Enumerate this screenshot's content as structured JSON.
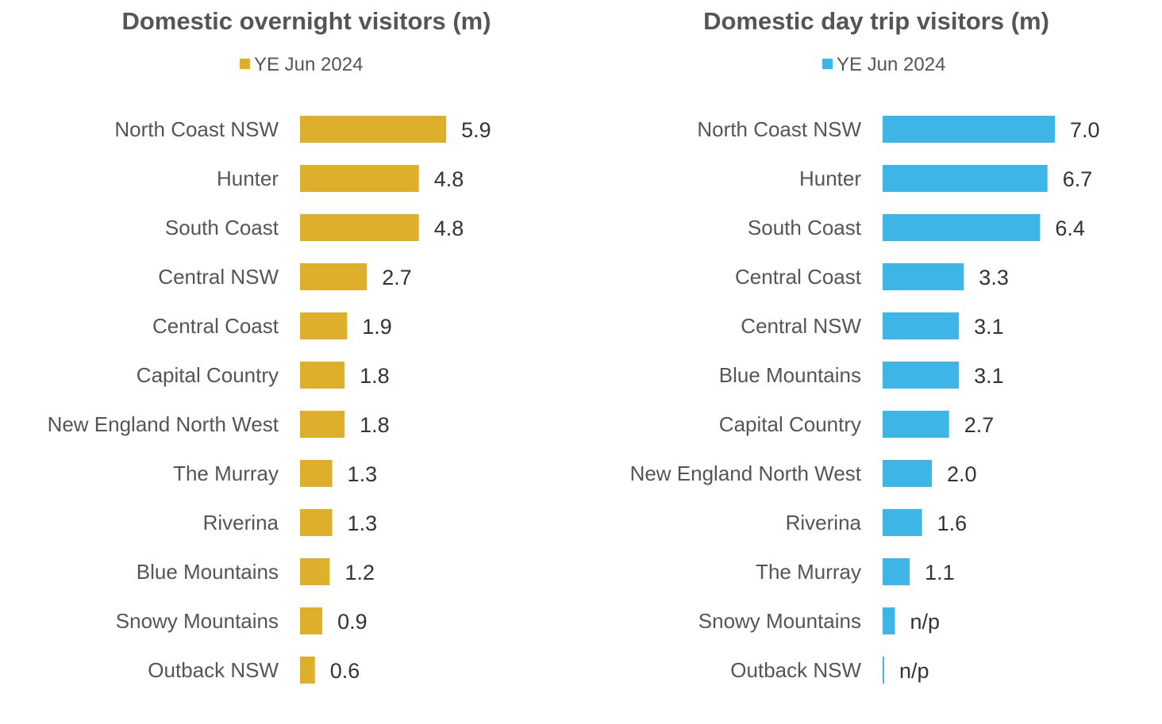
{
  "chart_data": [
    {
      "type": "bar",
      "orientation": "horizontal",
      "title": "Domestic overnight visitors (m)",
      "legend": {
        "placement": "top-center",
        "entries": [
          "YE Jun 2024"
        ]
      },
      "grid": false,
      "color": "#DDAF2A",
      "categories": [
        "North Coast NSW",
        "Hunter",
        "South Coast",
        "Central NSW",
        "Central Coast",
        "Capital Country",
        "New England North West",
        "The Murray",
        "Riverina",
        "Blue Mountains",
        "Snowy Mountains",
        "Outback NSW"
      ],
      "series": [
        {
          "name": "YE Jun 2024",
          "values": [
            5.9,
            4.8,
            4.8,
            2.7,
            1.9,
            1.8,
            1.8,
            1.3,
            1.3,
            1.2,
            0.9,
            0.6
          ]
        }
      ],
      "labels": [
        "5.9",
        "4.8",
        "4.8",
        "2.7",
        "1.9",
        "1.8",
        "1.8",
        "1.3",
        "1.3",
        "1.2",
        "0.9",
        "0.6"
      ]
    },
    {
      "type": "bar",
      "orientation": "horizontal",
      "title": "Domestic day trip visitors (m)",
      "legend": {
        "placement": "top-center",
        "entries": [
          "YE Jun 2024"
        ]
      },
      "grid": false,
      "color": "#3DB5E6",
      "categories": [
        "North Coast NSW",
        "Hunter",
        "South Coast",
        "Central Coast",
        "Central NSW",
        "Blue Mountains",
        "Capital Country",
        "New England North West",
        "Riverina",
        "The Murray",
        "Snowy Mountains",
        "Outback NSW"
      ],
      "series": [
        {
          "name": "YE Jun 2024",
          "values": [
            7.0,
            6.7,
            6.4,
            3.3,
            3.1,
            3.1,
            2.7,
            2.0,
            1.6,
            1.1,
            0.5,
            0.05
          ]
        }
      ],
      "labels": [
        "7.0",
        "6.7",
        "6.4",
        "3.3",
        "3.1",
        "3.1",
        "2.7",
        "2.0",
        "1.6",
        "1.1",
        "n/p",
        "n/p"
      ]
    }
  ]
}
